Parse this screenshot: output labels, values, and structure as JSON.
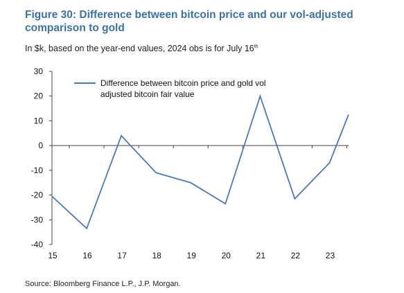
{
  "header": {
    "title": "Figure 30: Difference between bitcoin price and our vol-adjusted comparison to gold",
    "subtitle_main": "In $k, based on the year-end values, 2024 obs is for July 16",
    "subtitle_sup": "th"
  },
  "footer": {
    "source": "Source: Bloomberg Finance L.P., J.P. Morgan."
  },
  "chart_data": {
    "type": "line",
    "title": "Figure 30: Difference between bitcoin price and our vol-adjusted comparison to gold",
    "subtitle": "In $k, based on the year-end values, 2024 obs is for July 16th",
    "xlabel": "",
    "ylabel": "",
    "categories": [
      "15",
      "16",
      "17",
      "18",
      "19",
      "20",
      "21",
      "22",
      "23"
    ],
    "ylim": [
      -40,
      30
    ],
    "yticks": [
      "30",
      "20",
      "10",
      "0",
      "-10",
      "-20",
      "-30",
      "-40"
    ],
    "legend": {
      "position": "top-left",
      "entries": [
        "Difference between bitcoin price and gold vol",
        "adjusted bitcoin fair value"
      ]
    },
    "grid": false,
    "color": "#4a77c0",
    "series": [
      {
        "name": "Difference between bitcoin price and gold vol adjusted bitcoin fair value",
        "x": [
          15,
          16,
          17,
          18,
          19,
          20,
          21,
          22,
          23,
          23.55
        ],
        "values": [
          -20.5,
          -33.5,
          4,
          -11,
          -15,
          -23.5,
          20,
          -21.5,
          -7,
          12.5
        ]
      }
    ]
  }
}
